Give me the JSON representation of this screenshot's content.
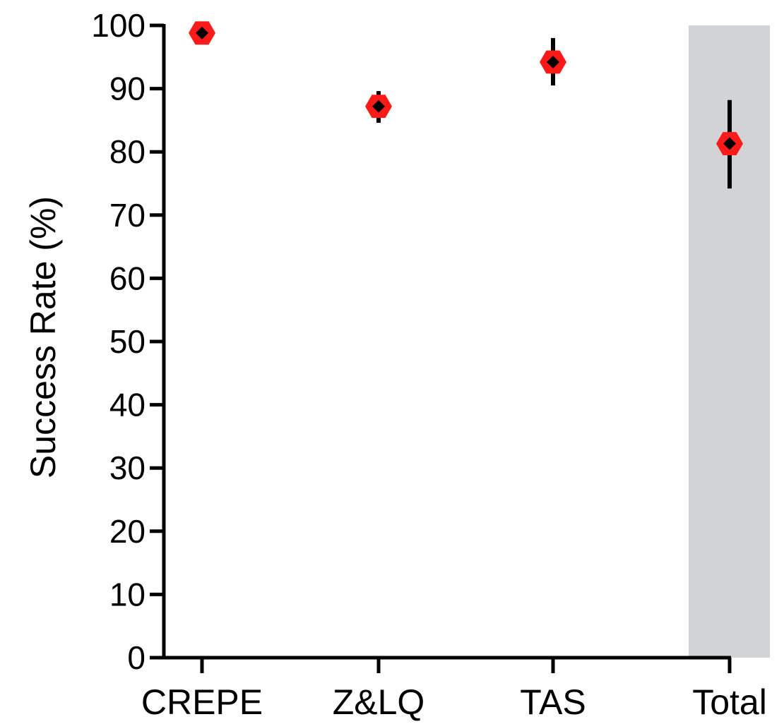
{
  "chart_data": {
    "type": "scatter",
    "title": "",
    "xlabel": "",
    "ylabel": "Success Rate (%)",
    "ylim": [
      0,
      100
    ],
    "yticks": [
      0,
      10,
      20,
      30,
      40,
      50,
      60,
      70,
      80,
      90,
      100
    ],
    "categories": [
      "CREPE",
      "Z&LQ",
      "TAS",
      "Total"
    ],
    "values": [
      98.8,
      87.2,
      94.2,
      81.3
    ],
    "error_low": [
      98.8,
      84.6,
      90.5,
      74.2
    ],
    "error_high": [
      98.8,
      89.6,
      98.0,
      88.2
    ],
    "highlighted_category": "Total",
    "grid": false,
    "colors": {
      "marker": "#ff1a1a",
      "marker_center": "#000000",
      "error_bar": "#000000",
      "highlight_band": "#d1d3d4",
      "axis": "#000000"
    }
  }
}
